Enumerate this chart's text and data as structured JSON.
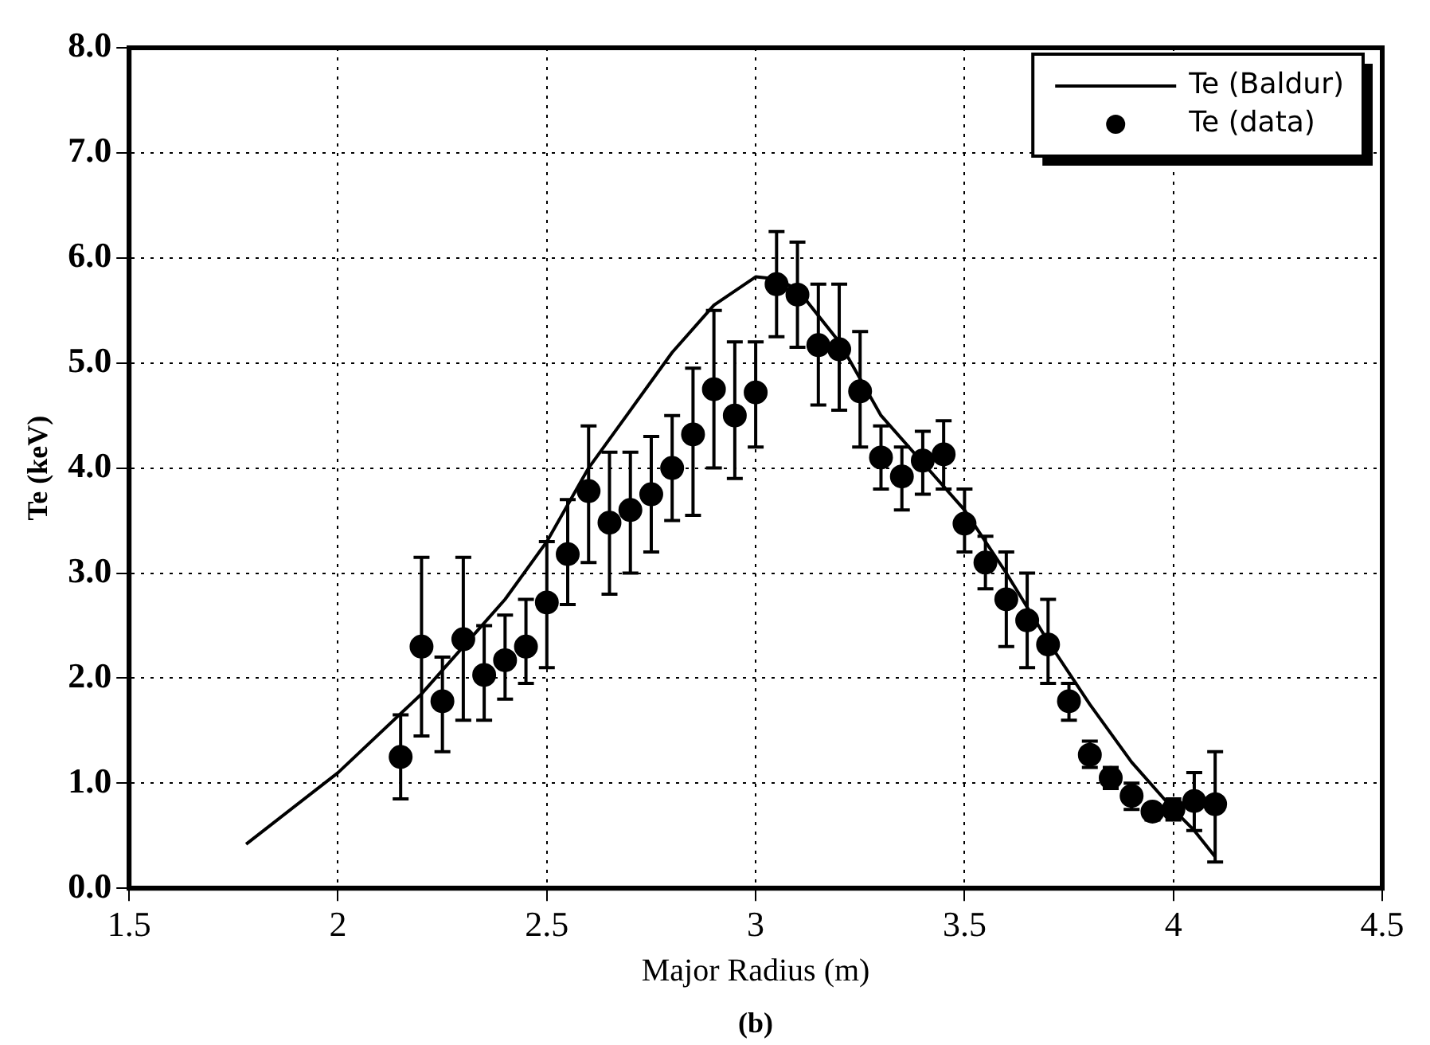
{
  "chart_data": {
    "type": "scatter",
    "xlabel": "Major Radius (m)",
    "ylabel": "Te (keV)",
    "annotations": [
      "(b)"
    ],
    "xlim": [
      1.5,
      4.5
    ],
    "xticks": [
      1.5,
      2,
      2.5,
      3,
      3.5,
      4,
      4.5
    ],
    "ylim": [
      0,
      8
    ],
    "yticks": [
      {
        "value": 0,
        "label": "0.0"
      },
      {
        "value": 1,
        "label": "1.0"
      },
      {
        "value": 2,
        "label": "2.0"
      },
      {
        "value": 3,
        "label": "3.0"
      },
      {
        "value": 4,
        "label": "4.0"
      },
      {
        "value": 5,
        "label": "5.0"
      },
      {
        "value": 6,
        "label": "6.0"
      },
      {
        "value": 7,
        "label": "7.0"
      },
      {
        "value": 8,
        "label": "8.0"
      }
    ],
    "grid": true,
    "legend": "top right",
    "series": [
      {
        "name": "Te (Baldur)",
        "type": "line",
        "color": "#000000",
        "marker": "none",
        "line_style": "solid",
        "x": [
          1.78,
          2.0,
          2.2,
          2.4,
          2.5,
          2.6,
          2.7,
          2.8,
          2.9,
          3.0,
          3.05,
          3.1,
          3.2,
          3.3,
          3.4,
          3.5,
          3.6,
          3.7,
          3.8,
          3.9,
          4.0,
          4.05,
          4.1
        ],
        "values": [
          0.42,
          1.1,
          1.85,
          2.75,
          3.3,
          4.0,
          4.55,
          5.1,
          5.55,
          5.82,
          5.8,
          5.7,
          5.2,
          4.5,
          4.05,
          3.6,
          3.0,
          2.35,
          1.75,
          1.2,
          0.75,
          0.55,
          0.3
        ]
      },
      {
        "name": "Te (data)",
        "color": "#000000",
        "marker": "circle",
        "x": [
          2.15,
          2.2,
          2.25,
          2.3,
          2.35,
          2.4,
          2.45,
          2.5,
          2.55,
          2.6,
          2.65,
          2.7,
          2.75,
          2.8,
          2.85,
          2.9,
          2.95,
          3.0,
          3.05,
          3.1,
          3.15,
          3.2,
          3.25,
          3.3,
          3.35,
          3.4,
          3.45,
          3.5,
          3.55,
          3.6,
          3.65,
          3.7,
          3.75,
          3.8,
          3.85,
          3.9,
          3.95,
          4.0,
          4.05,
          4.1
        ],
        "values": [
          1.25,
          2.3,
          1.78,
          2.37,
          2.03,
          2.17,
          2.3,
          2.72,
          3.18,
          3.78,
          3.48,
          3.6,
          3.75,
          4.0,
          4.32,
          4.75,
          4.5,
          4.72,
          5.75,
          5.65,
          5.17,
          5.13,
          4.73,
          4.1,
          3.92,
          4.07,
          4.13,
          3.47,
          3.1,
          2.75,
          2.55,
          2.32,
          1.78,
          1.27,
          1.05,
          0.88,
          0.73,
          0.75,
          0.83,
          0.8
        ],
        "errors": [
          [
            0.85,
            1.65
          ],
          [
            1.45,
            3.15
          ],
          [
            1.3,
            2.2
          ],
          [
            1.6,
            3.15
          ],
          [
            1.6,
            2.5
          ],
          [
            1.8,
            2.6
          ],
          [
            1.95,
            2.75
          ],
          [
            2.1,
            3.3
          ],
          [
            2.7,
            3.7
          ],
          [
            3.1,
            4.4
          ],
          [
            2.8,
            4.15
          ],
          [
            3.0,
            4.15
          ],
          [
            3.2,
            4.3
          ],
          [
            3.5,
            4.5
          ],
          [
            3.55,
            4.95
          ],
          [
            4.0,
            5.5
          ],
          [
            3.9,
            5.2
          ],
          [
            4.2,
            5.2
          ],
          [
            5.25,
            6.25
          ],
          [
            5.15,
            6.15
          ],
          [
            4.6,
            5.75
          ],
          [
            4.55,
            5.75
          ],
          [
            4.2,
            5.3
          ],
          [
            3.8,
            4.4
          ],
          [
            3.6,
            4.2
          ],
          [
            3.75,
            4.35
          ],
          [
            3.8,
            4.45
          ],
          [
            3.2,
            3.8
          ],
          [
            2.85,
            3.35
          ],
          [
            2.3,
            3.2
          ],
          [
            2.1,
            3.0
          ],
          [
            1.95,
            2.75
          ],
          [
            1.6,
            1.95
          ],
          [
            1.15,
            1.4
          ],
          [
            0.95,
            1.15
          ],
          [
            0.75,
            1.0
          ],
          [
            0.65,
            0.8
          ],
          [
            0.65,
            0.85
          ],
          [
            0.55,
            1.1
          ],
          [
            0.25,
            1.3
          ]
        ]
      }
    ]
  }
}
